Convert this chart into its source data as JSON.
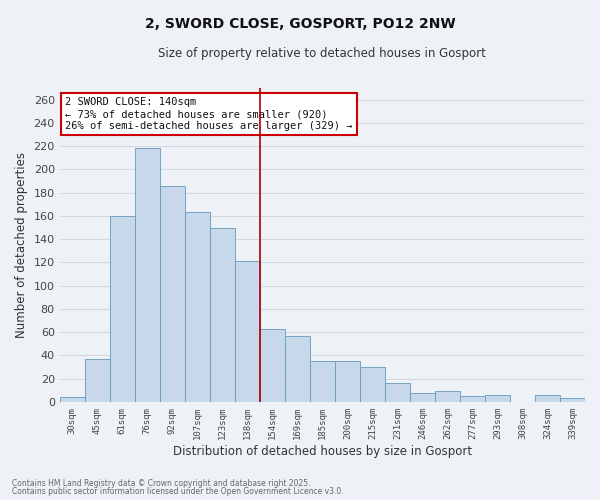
{
  "title": "2, SWORD CLOSE, GOSPORT, PO12 2NW",
  "subtitle": "Size of property relative to detached houses in Gosport",
  "xlabel": "Distribution of detached houses by size in Gosport",
  "ylabel": "Number of detached properties",
  "bar_color": "#c8d8eb",
  "bar_edge_color": "#6699bb",
  "background_color": "#eef2f7",
  "grid_color": "#d0d8e4",
  "categories": [
    "30sqm",
    "45sqm",
    "61sqm",
    "76sqm",
    "92sqm",
    "107sqm",
    "123sqm",
    "138sqm",
    "154sqm",
    "169sqm",
    "185sqm",
    "200sqm",
    "215sqm",
    "231sqm",
    "246sqm",
    "262sqm",
    "277sqm",
    "293sqm",
    "308sqm",
    "324sqm",
    "339sqm"
  ],
  "values": [
    4,
    37,
    160,
    218,
    186,
    163,
    150,
    121,
    63,
    57,
    35,
    35,
    30,
    16,
    8,
    9,
    5,
    6,
    0,
    6,
    3
  ],
  "ylim": [
    0,
    270
  ],
  "yticks": [
    0,
    20,
    40,
    60,
    80,
    100,
    120,
    140,
    160,
    180,
    200,
    220,
    240,
    260
  ],
  "vline_color": "#aa0000",
  "annotation_title": "2 SWORD CLOSE: 140sqm",
  "annotation_line1": "← 73% of detached houses are smaller (920)",
  "annotation_line2": "26% of semi-detached houses are larger (329) →",
  "annotation_box_color": "#ffffff",
  "annotation_box_edge": "#cc0000",
  "footnote1": "Contains HM Land Registry data © Crown copyright and database right 2025.",
  "footnote2": "Contains public sector information licensed under the Open Government Licence v3.0."
}
